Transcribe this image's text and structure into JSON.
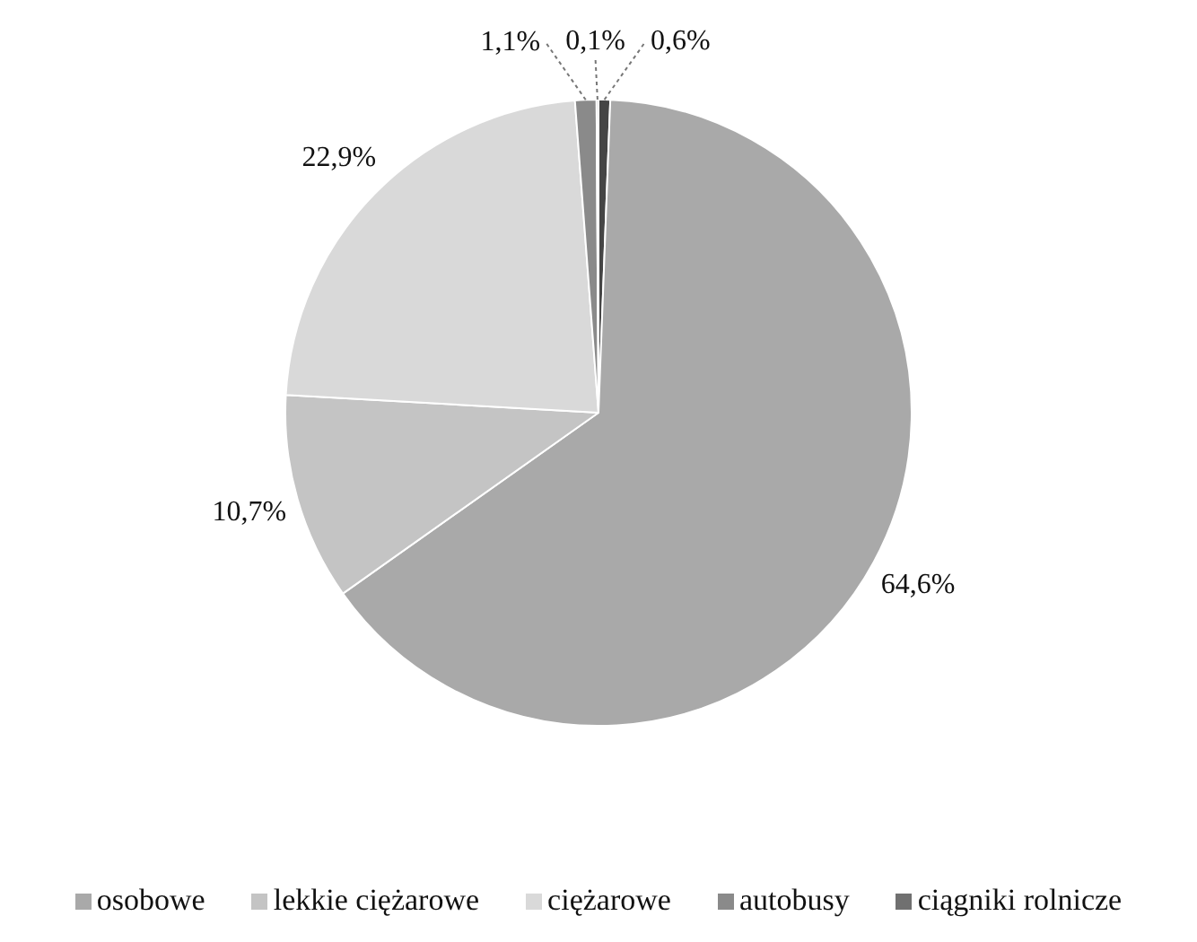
{
  "chart_data": {
    "type": "pie",
    "categories": [
      null,
      "osobowe",
      "lekkie ciężarowe",
      "ciężarowe",
      "autobusy",
      "ciągniki rolnicze"
    ],
    "values": [
      0.6,
      64.6,
      10.7,
      22.9,
      1.1,
      0.1
    ],
    "value_labels": [
      "0,6%",
      "64,6%",
      "10,7%",
      "22,9%",
      "1,1%",
      "0,1%"
    ],
    "colors": [
      "#454545",
      "#a9a9a9",
      "#c4c4c4",
      "#d9d9d9",
      "#8a8a8a",
      "#707070"
    ],
    "legend": "bottom"
  }
}
